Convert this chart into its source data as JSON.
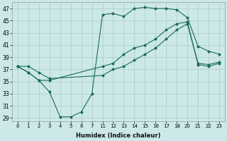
{
  "xlabel": "Humidex (Indice chaleur)",
  "bg_color": "#cce8e8",
  "grid_color": "#aacccc",
  "line_color": "#1a6b5a",
  "x_labels": [
    "0",
    "1",
    "2",
    "3",
    "4",
    "5",
    "6",
    "7",
    "11",
    "12",
    "13",
    "14",
    "15",
    "16",
    "17",
    "18",
    "20",
    "21",
    "22",
    "23"
  ],
  "ylim": [
    28.5,
    48
  ],
  "yticks": [
    29,
    31,
    33,
    35,
    37,
    39,
    41,
    43,
    45,
    47
  ],
  "line1_x_idx": [
    0,
    1,
    2,
    3,
    4,
    5,
    6,
    7,
    8,
    9,
    10,
    11,
    12,
    13,
    14,
    15,
    16,
    17,
    18,
    19
  ],
  "line1_y": [
    37.5,
    36.5,
    35.2,
    33.3,
    29.2,
    29.2,
    30.0,
    33.0,
    46.0,
    46.2,
    45.7,
    47.0,
    47.2,
    47.0,
    47.0,
    46.8,
    45.5,
    40.8,
    40.0,
    39.5
  ],
  "line2_x_idx": [
    0,
    1,
    2,
    3,
    8,
    9,
    10,
    11,
    12,
    13,
    14,
    15,
    16,
    17,
    18,
    19
  ],
  "line2_y": [
    37.5,
    36.5,
    35.2,
    35.2,
    37.5,
    38.0,
    39.5,
    40.5,
    41.0,
    42.0,
    43.5,
    44.5,
    44.8,
    37.8,
    37.5,
    38.0
  ],
  "line3_x_idx": [
    0,
    1,
    2,
    3,
    8,
    9,
    10,
    11,
    12,
    13,
    14,
    15,
    16,
    17,
    18,
    19
  ],
  "line3_y": [
    37.5,
    37.5,
    36.5,
    35.5,
    36.0,
    37.0,
    37.5,
    38.5,
    39.5,
    40.5,
    42.0,
    43.5,
    44.5,
    38.0,
    37.8,
    38.2
  ]
}
